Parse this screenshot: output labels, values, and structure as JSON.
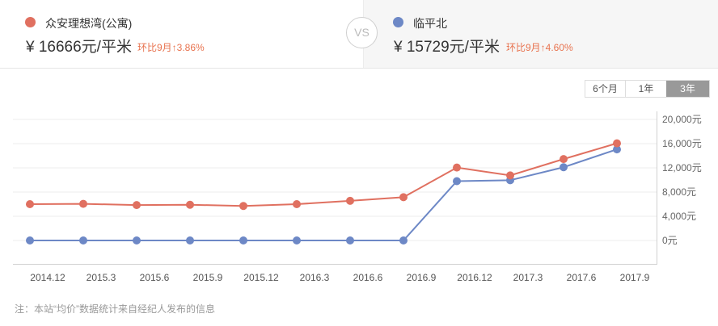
{
  "left": {
    "name": "众安理想湾(公寓)",
    "price": "¥  16666元/平米",
    "change": "环比9月↑3.86%",
    "color": "#e07060"
  },
  "vs_label": "VS",
  "right": {
    "name": "临平北",
    "price": "¥  15729元/平米",
    "change": "环比9月↑4.60%",
    "color": "#6d88c6"
  },
  "range_tabs": [
    {
      "label": "6个月",
      "active": false
    },
    {
      "label": "1年",
      "active": false
    },
    {
      "label": "3年",
      "active": true
    }
  ],
  "note": "注：本站“均价”数据统计来自经纪人发布的信息",
  "chart_data": {
    "type": "line",
    "title": "",
    "xlabel": "",
    "ylabel": "",
    "categories": [
      "2014.12",
      "2015.3",
      "2015.6",
      "2015.9",
      "2015.12",
      "2016.3",
      "2016.6",
      "2016.9",
      "2016.12",
      "2017.3",
      "2017.6",
      "2017.9"
    ],
    "y_tick_labels": [
      "20,000元",
      "16,000元",
      "12,000元",
      "8,000元",
      "4,000元",
      "0元"
    ],
    "ylim": [
      -4000,
      20000
    ],
    "grid": true,
    "legend_position": "top (header cards)",
    "series": [
      {
        "name": "众安理想湾(公寓)",
        "color": "#e07060",
        "values": [
          6000,
          6050,
          5850,
          5900,
          5700,
          6000,
          6550,
          7150,
          12050,
          10750,
          13450,
          16050
        ]
      },
      {
        "name": "临平北",
        "color": "#6d88c6",
        "values": [
          0,
          0,
          0,
          0,
          0,
          0,
          0,
          0,
          9800,
          9950,
          12100,
          15050
        ]
      }
    ]
  }
}
